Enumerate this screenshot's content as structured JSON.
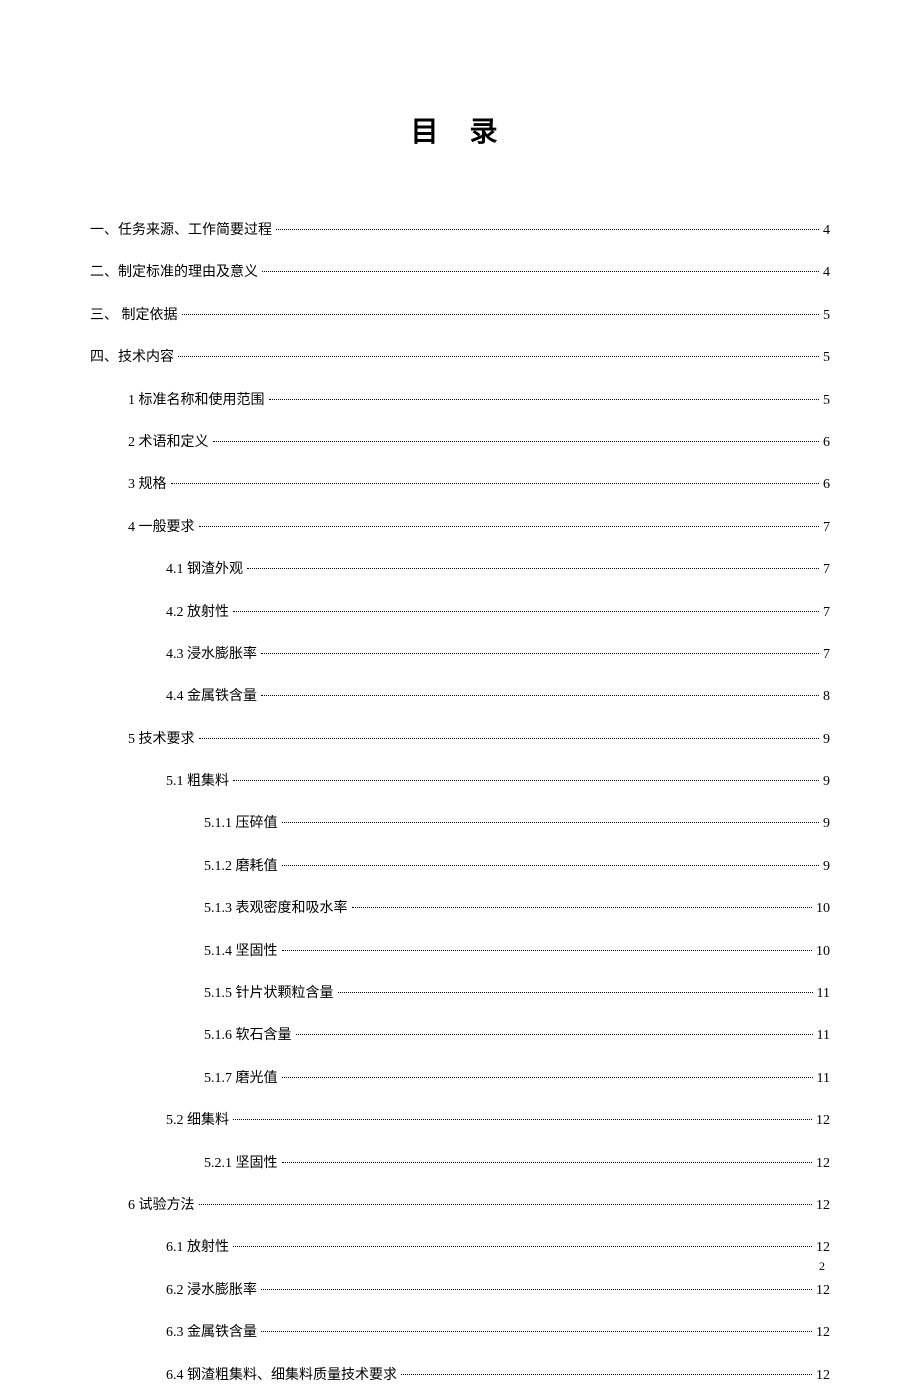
{
  "title": "目 录",
  "page_number": "2",
  "colors": {
    "background": "#ffffff",
    "text": "#000000"
  },
  "typography": {
    "body_font_family": "SimSun",
    "body_fontsize": 14,
    "title_fontsize": 28,
    "title_weight": "bold",
    "title_letter_spacing": 12
  },
  "toc": [
    {
      "label": "一、任务来源、工作简要过程",
      "page": "4",
      "indent": 0
    },
    {
      "label": "二、制定标准的理由及意义",
      "page": "4",
      "indent": 0
    },
    {
      "label": "三、  制定依据",
      "page": "5",
      "indent": 0
    },
    {
      "label": "四、技术内容",
      "page": "5",
      "indent": 0
    },
    {
      "label": "1   标准名称和使用范围",
      "page": "5",
      "indent": 1
    },
    {
      "label": "2  术语和定义",
      "page": "6",
      "indent": 1
    },
    {
      "label": "3  规格",
      "page": "6",
      "indent": 1
    },
    {
      "label": "4  一般要求",
      "page": "7",
      "indent": 1
    },
    {
      "label": "4.1  钢渣外观",
      "page": "7",
      "indent": 2
    },
    {
      "label": "4.2  放射性",
      "page": "7",
      "indent": 2
    },
    {
      "label": "4.3  浸水膨胀率",
      "page": "7",
      "indent": 2
    },
    {
      "label": "4.4  金属铁含量",
      "page": "8",
      "indent": 2
    },
    {
      "label": "5   技术要求",
      "page": "9",
      "indent": 1
    },
    {
      "label": "5.1  粗集料",
      "page": "9",
      "indent": 2
    },
    {
      "label": "5.1.1  压碎值",
      "page": "9",
      "indent": 3
    },
    {
      "label": "5.1.2  磨耗值",
      "page": "9",
      "indent": 3
    },
    {
      "label": "5.1.3  表观密度和吸水率",
      "page": "10",
      "indent": 3
    },
    {
      "label": "5.1.4  坚固性",
      "page": "10",
      "indent": 3
    },
    {
      "label": "5.1.5  针片状颗粒含量",
      "page": "11",
      "indent": 3
    },
    {
      "label": "5.1.6  软石含量",
      "page": "11",
      "indent": 3
    },
    {
      "label": "5.1.7  磨光值",
      "page": "11",
      "indent": 3
    },
    {
      "label": "5.2  细集料",
      "page": "12",
      "indent": 2
    },
    {
      "label": "5.2.1  坚固性",
      "page": "12",
      "indent": 3
    },
    {
      "label": "6  试验方法",
      "page": "12",
      "indent": 1
    },
    {
      "label": "6.1  放射性",
      "page": "12",
      "indent": 2
    },
    {
      "label": "6.2  浸水膨胀率",
      "page": "12",
      "indent": 2
    },
    {
      "label": "6.3  金属铁含量",
      "page": "12",
      "indent": 2
    },
    {
      "label": "6.4  钢渣粗集料、细集料质量技术要求",
      "page": "12",
      "indent": 2
    }
  ]
}
